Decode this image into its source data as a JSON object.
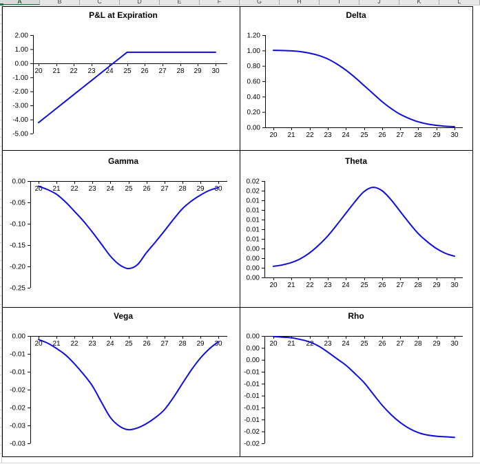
{
  "spreadsheet": {
    "column_headers": [
      "A",
      "B",
      "C",
      "D",
      "E",
      "F",
      "G",
      "H",
      "I",
      "J",
      "K",
      "L"
    ],
    "selected_column": "A"
  },
  "colors": {
    "line_blue": "#0b0bdf",
    "axis_black": "#000000",
    "grid_border_black": "#000000",
    "header_selected_green": "#1e7145",
    "header_bg": "#e7e7e7",
    "gridline_gray": "#c9c9c9"
  },
  "chart_data": [
    {
      "type": "line",
      "title": "P&L at Expiration",
      "x_start": 20,
      "x_step": 0.5,
      "y": [
        -4.22,
        -3.72,
        -3.22,
        -2.72,
        -2.22,
        -1.72,
        -1.22,
        -0.72,
        -0.22,
        0.28,
        0.78,
        0.78,
        0.78,
        0.78,
        0.78,
        0.78,
        0.78,
        0.78,
        0.78,
        0.78,
        0.78
      ],
      "x_ticks": [
        "20",
        "21",
        "22",
        "23",
        "24",
        "25",
        "26",
        "27",
        "28",
        "29",
        "30"
      ],
      "y_tick_labels": [
        "2.00",
        "1.00",
        "0.00",
        "-1.00",
        "-2.00",
        "-3.00",
        "-4.00",
        "-5.00"
      ],
      "xlim": [
        20,
        30
      ],
      "ylim": [
        -5,
        2
      ],
      "x_axis_at": "zero",
      "smooth": false,
      "grid": false,
      "legend": "none"
    },
    {
      "type": "line",
      "title": "Delta",
      "x_start": 20,
      "x_step": 0.5,
      "y": [
        1.002,
        1.0,
        0.995,
        0.985,
        0.965,
        0.935,
        0.89,
        0.825,
        0.745,
        0.65,
        0.545,
        0.44,
        0.335,
        0.245,
        0.17,
        0.115,
        0.072,
        0.044,
        0.026,
        0.015,
        0.009
      ],
      "x_ticks": [
        "20",
        "21",
        "22",
        "23",
        "24",
        "25",
        "26",
        "27",
        "28",
        "29",
        "30"
      ],
      "y_tick_labels": [
        "1.20",
        "1.00",
        "0.80",
        "0.60",
        "0.40",
        "0.20",
        "0.00"
      ],
      "xlim": [
        20,
        30
      ],
      "ylim": [
        0,
        1.2
      ],
      "x_axis_at": "bottom",
      "smooth": true,
      "grid": false,
      "legend": "none"
    },
    {
      "type": "line",
      "title": "Gamma",
      "x_start": 20,
      "x_step": 0.5,
      "y": [
        -0.012,
        -0.02,
        -0.031,
        -0.049,
        -0.071,
        -0.094,
        -0.12,
        -0.148,
        -0.176,
        -0.196,
        -0.205,
        -0.196,
        -0.168,
        -0.143,
        -0.117,
        -0.09,
        -0.065,
        -0.047,
        -0.033,
        -0.022,
        -0.015
      ],
      "x_ticks": [
        "20",
        "21",
        "22",
        "23",
        "24",
        "25",
        "26",
        "27",
        "28",
        "29",
        "30"
      ],
      "y_tick_labels": [
        "0.00",
        "-0.05",
        "-0.10",
        "-0.15",
        "-0.20",
        "-0.25"
      ],
      "xlim": [
        20,
        30
      ],
      "ylim": [
        -0.25,
        0
      ],
      "x_axis_at": "top",
      "smooth": true,
      "grid": false,
      "legend": "none"
    },
    {
      "type": "line",
      "title": "Theta",
      "x_start": 20,
      "x_step": 0.5,
      "y": [
        0.0003,
        0.0006,
        0.0011,
        0.0019,
        0.0031,
        0.0047,
        0.0066,
        0.0089,
        0.0113,
        0.0137,
        0.0158,
        0.0167,
        0.016,
        0.0141,
        0.0117,
        0.0093,
        0.0071,
        0.0054,
        0.004,
        0.003,
        0.0024
      ],
      "x_ticks": [
        "20",
        "21",
        "22",
        "23",
        "24",
        "25",
        "26",
        "27",
        "28",
        "29",
        "30"
      ],
      "y_tick_labels": [
        "0.02",
        "0.02",
        "0.01",
        "0.01",
        "0.01",
        "0.01",
        "0.01",
        "0.00",
        "0.00",
        "0.00",
        "0.00"
      ],
      "xlim": [
        20,
        30
      ],
      "ylim": [
        -0.002,
        0.018
      ],
      "x_axis_at": "bottom",
      "smooth": true,
      "grid": false,
      "legend": "none"
    },
    {
      "type": "line",
      "title": "Vega",
      "x_start": 20,
      "x_step": 0.5,
      "y": [
        -0.001,
        -0.002,
        -0.0035,
        -0.0053,
        -0.0078,
        -0.0107,
        -0.014,
        -0.0185,
        -0.0228,
        -0.0252,
        -0.0262,
        -0.0257,
        -0.0245,
        -0.0228,
        -0.0206,
        -0.0172,
        -0.0133,
        -0.0095,
        -0.0062,
        -0.0036,
        -0.0016
      ],
      "x_ticks": [
        "20",
        "21",
        "22",
        "23",
        "24",
        "25",
        "26",
        "27",
        "28",
        "29",
        "30"
      ],
      "y_tick_labels": [
        "0.00",
        "-0.01",
        "-0.01",
        "-0.02",
        "-0.02",
        "-0.03",
        "-0.03"
      ],
      "xlim": [
        20,
        30
      ],
      "ylim": [
        -0.03,
        0
      ],
      "x_axis_at": "top",
      "smooth": true,
      "grid": false,
      "legend": "none"
    },
    {
      "type": "line",
      "title": "Rho",
      "x_start": 20,
      "x_step": 0.5,
      "y": [
        -0.0001,
        -0.0002,
        -0.0003,
        -0.0006,
        -0.001,
        -0.0017,
        -0.0027,
        -0.0038,
        -0.0049,
        -0.0063,
        -0.0078,
        -0.0097,
        -0.0116,
        -0.0132,
        -0.0145,
        -0.0155,
        -0.0162,
        -0.0166,
        -0.0168,
        -0.0169,
        -0.017
      ],
      "x_ticks": [
        "20",
        "21",
        "22",
        "23",
        "24",
        "25",
        "26",
        "27",
        "28",
        "29",
        "30"
      ],
      "y_tick_labels": [
        "0.00",
        "0.00",
        "0.00",
        "-0.01",
        "-0.01",
        "-0.01",
        "-0.01",
        "-0.01",
        "-0.02",
        "-0.02"
      ],
      "xlim": [
        20,
        30
      ],
      "ylim": [
        -0.018,
        0
      ],
      "x_axis_at": "top",
      "smooth": true,
      "grid": false,
      "legend": "none"
    }
  ]
}
